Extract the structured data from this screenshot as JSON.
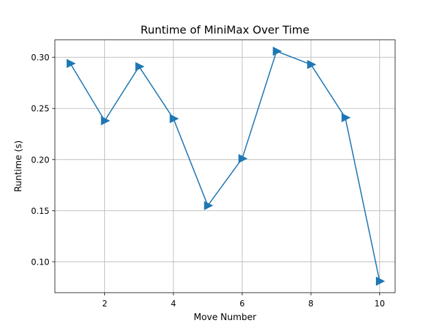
{
  "chart_data": {
    "type": "line",
    "title": "Runtime of MiniMax Over Time",
    "xlabel": "Move Number",
    "ylabel": "Runtime (s)",
    "x": [
      1,
      2,
      3,
      4,
      5,
      6,
      7,
      8,
      9,
      10
    ],
    "series": [
      {
        "values": [
          0.294,
          0.238,
          0.291,
          0.24,
          0.155,
          0.201,
          0.306,
          0.293,
          0.241,
          0.081
        ],
        "color": "#1f77b4",
        "marker": "triangle-right"
      }
    ],
    "xlim": [
      0.55,
      10.45
    ],
    "ylim": [
      0.0698,
      0.3172
    ],
    "xticks": [
      2,
      4,
      6,
      8,
      10
    ],
    "xtick_labels": [
      "2",
      "4",
      "6",
      "8",
      "10"
    ],
    "yticks": [
      0.1,
      0.15,
      0.2,
      0.25,
      0.3
    ],
    "ytick_labels": [
      "0.10",
      "0.15",
      "0.20",
      "0.25",
      "0.30"
    ],
    "grid": true
  }
}
